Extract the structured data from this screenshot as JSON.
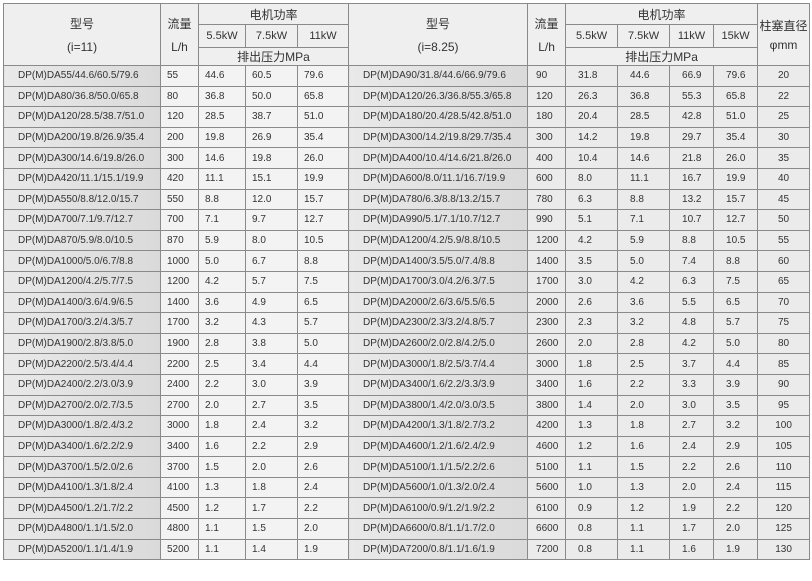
{
  "header": {
    "model_label": "型号",
    "left_ratio": "(i=11)",
    "right_ratio": "(i=8.25)",
    "flow_label": "流量",
    "flow_unit": "L/h",
    "motor_power": "电机功率",
    "pressure_label": "排出压力MPa",
    "piston_label": "柱塞直径",
    "piston_unit": "φmm",
    "powers_left": [
      "5.5kW",
      "7.5kW",
      "11kW"
    ],
    "powers_right": [
      "5.5kW",
      "7.5kW",
      "11kW",
      "15kW"
    ]
  },
  "rows": [
    {
      "lm": "DP(M)DA55/44.6/60.5/79.6",
      "lf": "55",
      "lp": [
        "44.6",
        "60.5",
        "79.6"
      ],
      "rm": "DP(M)DA90/31.8/44.6/66.9/79.6",
      "rf": "90",
      "rp": [
        "31.8",
        "44.6",
        "66.9",
        "79.6"
      ],
      "d": "20"
    },
    {
      "lm": "DP(M)DA80/36.8/50.0/65.8",
      "lf": "80",
      "lp": [
        "36.8",
        "50.0",
        "65.8"
      ],
      "rm": "DP(M)DA120/26.3/36.8/55.3/65.8",
      "rf": "120",
      "rp": [
        "26.3",
        "36.8",
        "55.3",
        "65.8"
      ],
      "d": "22"
    },
    {
      "lm": "DP(M)DA120/28.5/38.7/51.0",
      "lf": "120",
      "lp": [
        "28.5",
        "38.7",
        "51.0"
      ],
      "rm": "DP(M)DA180/20.4/28.5/42.8/51.0",
      "rf": "180",
      "rp": [
        "20.4",
        "28.5",
        "42.8",
        "51.0"
      ],
      "d": "25"
    },
    {
      "lm": "DP(M)DA200/19.8/26.9/35.4",
      "lf": "200",
      "lp": [
        "19.8",
        "26.9",
        "35.4"
      ],
      "rm": "DP(M)DA300/14.2/19.8/29.7/35.4",
      "rf": "300",
      "rp": [
        "14.2",
        "19.8",
        "29.7",
        "35.4"
      ],
      "d": "30"
    },
    {
      "lm": "DP(M)DA300/14.6/19.8/26.0",
      "lf": "300",
      "lp": [
        "14.6",
        "19.8",
        "26.0"
      ],
      "rm": "DP(M)DA400/10.4/14.6/21.8/26.0",
      "rf": "400",
      "rp": [
        "10.4",
        "14.6",
        "21.8",
        "26.0"
      ],
      "d": "35"
    },
    {
      "lm": "DP(M)DA420/11.1/15.1/19.9",
      "lf": "420",
      "lp": [
        "11.1",
        "15.1",
        "19.9"
      ],
      "rm": "DP(M)DA600/8.0/11.1/16.7/19.9",
      "rf": "600",
      "rp": [
        "8.0",
        "11.1",
        "16.7",
        "19.9"
      ],
      "d": "40"
    },
    {
      "lm": "DP(M)DA550/8.8/12.0/15.7",
      "lf": "550",
      "lp": [
        "8.8",
        "12.0",
        "15.7"
      ],
      "rm": "DP(M)DA780/6.3/8.8/13.2/15.7",
      "rf": "780",
      "rp": [
        "6.3",
        "8.8",
        "13.2",
        "15.7"
      ],
      "d": "45"
    },
    {
      "lm": "DP(M)DA700/7.1/9.7/12.7",
      "lf": "700",
      "lp": [
        "7.1",
        "9.7",
        "12.7"
      ],
      "rm": "DP(M)DA990/5.1/7.1/10.7/12.7",
      "rf": "990",
      "rp": [
        "5.1",
        "7.1",
        "10.7",
        "12.7"
      ],
      "d": "50"
    },
    {
      "lm": "DP(M)DA870/5.9/8.0/10.5",
      "lf": "870",
      "lp": [
        "5.9",
        "8.0",
        "10.5"
      ],
      "rm": "DP(M)DA1200/4.2/5.9/8.8/10.5",
      "rf": "1200",
      "rp": [
        "4.2",
        "5.9",
        "8.8",
        "10.5"
      ],
      "d": "55"
    },
    {
      "lm": "DP(M)DA1000/5.0/6.7/8.8",
      "lf": "1000",
      "lp": [
        "5.0",
        "6.7",
        "8.8"
      ],
      "rm": "DP(M)DA1400/3.5/5.0/7.4/8.8",
      "rf": "1400",
      "rp": [
        "3.5",
        "5.0",
        "7.4",
        "8.8"
      ],
      "d": "60"
    },
    {
      "lm": "DP(M)DA1200/4.2/5.7/7.5",
      "lf": "1200",
      "lp": [
        "4.2",
        "5.7",
        "7.5"
      ],
      "rm": "DP(M)DA1700/3.0/4.2/6.3/7.5",
      "rf": "1700",
      "rp": [
        "3.0",
        "4.2",
        "6.3",
        "7.5"
      ],
      "d": "65"
    },
    {
      "lm": "DP(M)DA1400/3.6/4.9/6.5",
      "lf": "1400",
      "lp": [
        "3.6",
        "4.9",
        "6.5"
      ],
      "rm": "DP(M)DA2000/2.6/3.6/5.5/6.5",
      "rf": "2000",
      "rp": [
        "2.6",
        "3.6",
        "5.5",
        "6.5"
      ],
      "d": "70"
    },
    {
      "lm": "DP(M)DA1700/3.2/4.3/5.7",
      "lf": "1700",
      "lp": [
        "3.2",
        "4.3",
        "5.7"
      ],
      "rm": "DP(M)DA2300/2.3/3.2/4.8/5.7",
      "rf": "2300",
      "rp": [
        "2.3",
        "3.2",
        "4.8",
        "5.7"
      ],
      "d": "75"
    },
    {
      "lm": "DP(M)DA1900/2.8/3.8/5.0",
      "lf": "1900",
      "lp": [
        "2.8",
        "3.8",
        "5.0"
      ],
      "rm": "DP(M)DA2600/2.0/2.8/4.2/5.0",
      "rf": "2600",
      "rp": [
        "2.0",
        "2.8",
        "4.2",
        "5.0"
      ],
      "d": "80"
    },
    {
      "lm": "DP(M)DA2200/2.5/3.4/4.4",
      "lf": "2200",
      "lp": [
        "2.5",
        "3.4",
        "4.4"
      ],
      "rm": "DP(M)DA3000/1.8/2.5/3.7/4.4",
      "rf": "3000",
      "rp": [
        "1.8",
        "2.5",
        "3.7",
        "4.4"
      ],
      "d": "85"
    },
    {
      "lm": "DP(M)DA2400/2.2/3.0/3.9",
      "lf": "2400",
      "lp": [
        "2.2",
        "3.0",
        "3.9"
      ],
      "rm": "DP(M)DA3400/1.6/2.2/3.3/3.9",
      "rf": "3400",
      "rp": [
        "1.6",
        "2.2",
        "3.3",
        "3.9"
      ],
      "d": "90"
    },
    {
      "lm": "DP(M)DA2700/2.0/2.7/3.5",
      "lf": "2700",
      "lp": [
        "2.0",
        "2.7",
        "3.5"
      ],
      "rm": "DP(M)DA3800/1.4/2.0/3.0/3.5",
      "rf": "3800",
      "rp": [
        "1.4",
        "2.0",
        "3.0",
        "3.5"
      ],
      "d": "95"
    },
    {
      "lm": "DP(M)DA3000/1.8/2.4/3.2",
      "lf": "3000",
      "lp": [
        "1.8",
        "2.4",
        "3.2"
      ],
      "rm": "DP(M)DA4200/1.3/1.8/2.7/3.2",
      "rf": "4200",
      "rp": [
        "1.3",
        "1.8",
        "2.7",
        "3.2"
      ],
      "d": "100"
    },
    {
      "lm": "DP(M)DA3400/1.6/2.2/2.9",
      "lf": "3400",
      "lp": [
        "1.6",
        "2.2",
        "2.9"
      ],
      "rm": "DP(M)DA4600/1.2/1.6/2.4/2.9",
      "rf": "4600",
      "rp": [
        "1.2",
        "1.6",
        "2.4",
        "2.9"
      ],
      "d": "105"
    },
    {
      "lm": "DP(M)DA3700/1.5/2.0/2.6",
      "lf": "3700",
      "lp": [
        "1.5",
        "2.0",
        "2.6"
      ],
      "rm": "DP(M)DA5100/1.1/1.5/2.2/2.6",
      "rf": "5100",
      "rp": [
        "1.1",
        "1.5",
        "2.2",
        "2.6"
      ],
      "d": "110"
    },
    {
      "lm": "DP(M)DA4100/1.3/1.8/2.4",
      "lf": "4100",
      "lp": [
        "1.3",
        "1.8",
        "2.4"
      ],
      "rm": "DP(M)DA5600/1.0/1.3/2.0/2.4",
      "rf": "5600",
      "rp": [
        "1.0",
        "1.3",
        "2.0",
        "2.4"
      ],
      "d": "115"
    },
    {
      "lm": "DP(M)DA4500/1.2/1.7/2.2",
      "lf": "4500",
      "lp": [
        "1.2",
        "1.7",
        "2.2"
      ],
      "rm": "DP(M)DA6100/0.9/1.2/1.9/2.2",
      "rf": "6100",
      "rp": [
        "0.9",
        "1.2",
        "1.9",
        "2.2"
      ],
      "d": "120"
    },
    {
      "lm": "DP(M)DA4800/1.1/1.5/2.0",
      "lf": "4800",
      "lp": [
        "1.1",
        "1.5",
        "2.0"
      ],
      "rm": "DP(M)DA6600/0.8/1.1/1.7/2.0",
      "rf": "6600",
      "rp": [
        "0.8",
        "1.1",
        "1.7",
        "2.0"
      ],
      "d": "125"
    },
    {
      "lm": "DP(M)DA5200/1.1/1.4/1.9",
      "lf": "5200",
      "lp": [
        "1.1",
        "1.4",
        "1.9"
      ],
      "rm": "DP(M)DA7200/0.8/1.1/1.6/1.9",
      "rf": "7200",
      "rp": [
        "0.8",
        "1.1",
        "1.6",
        "1.9"
      ],
      "d": "130"
    }
  ]
}
